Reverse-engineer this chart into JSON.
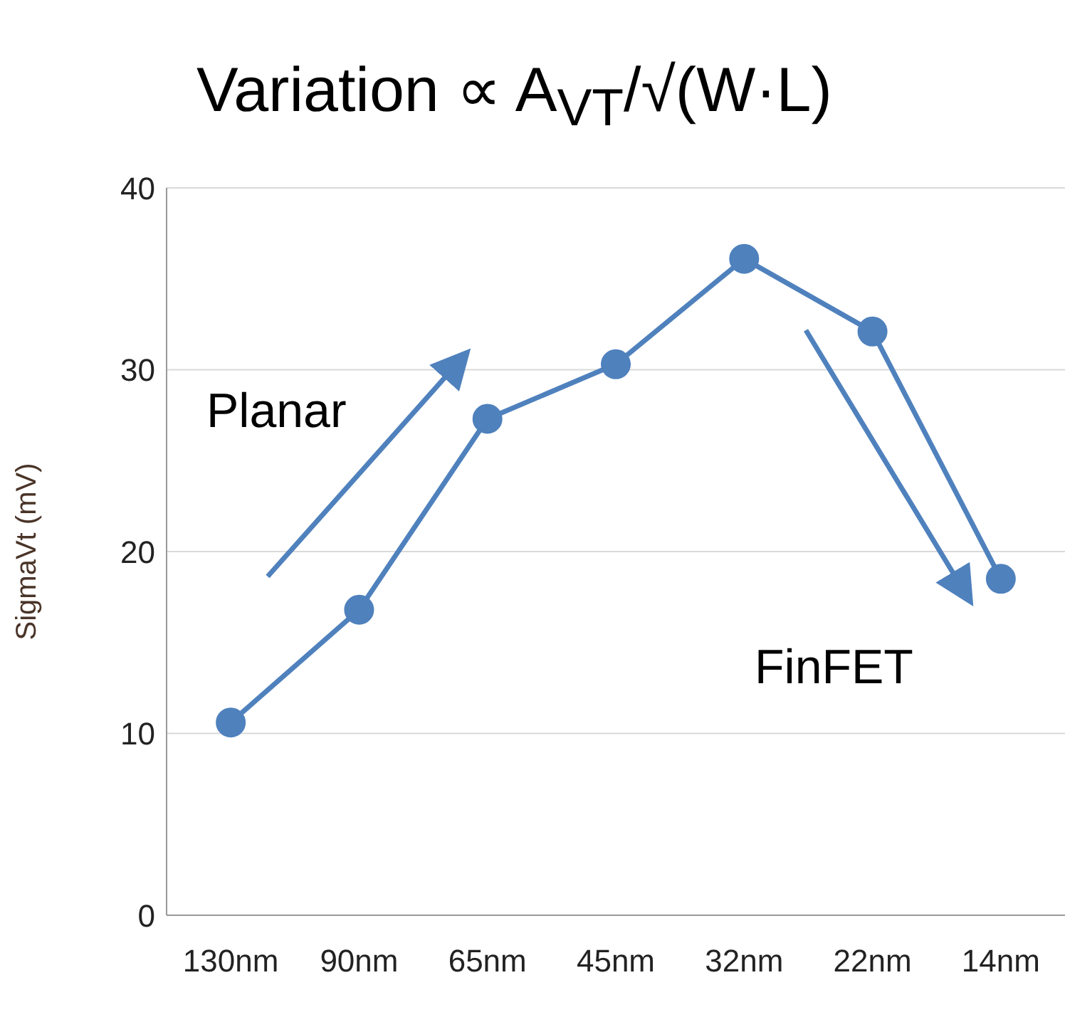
{
  "chart_data": {
    "type": "line",
    "title": "Variation ∝ A$_{VT}$/√(W·L)",
    "ylabel": "SigmaVt (mV)",
    "categories": [
      "130nm",
      "90nm",
      "65nm",
      "45nm",
      "32nm",
      "22nm",
      "14nm"
    ],
    "series": [
      {
        "color": "#4f81bd",
        "values": [
          10.6,
          16.8,
          27.3,
          30.3,
          36.1,
          32.1,
          18.5
        ]
      }
    ],
    "ylim": [
      0,
      40
    ],
    "yticks": [
      0,
      10,
      20,
      30,
      40
    ],
    "grid": "y",
    "marker": "circle",
    "line_style": "solid",
    "annotations": [
      "Planar",
      "FinFET"
    ]
  }
}
